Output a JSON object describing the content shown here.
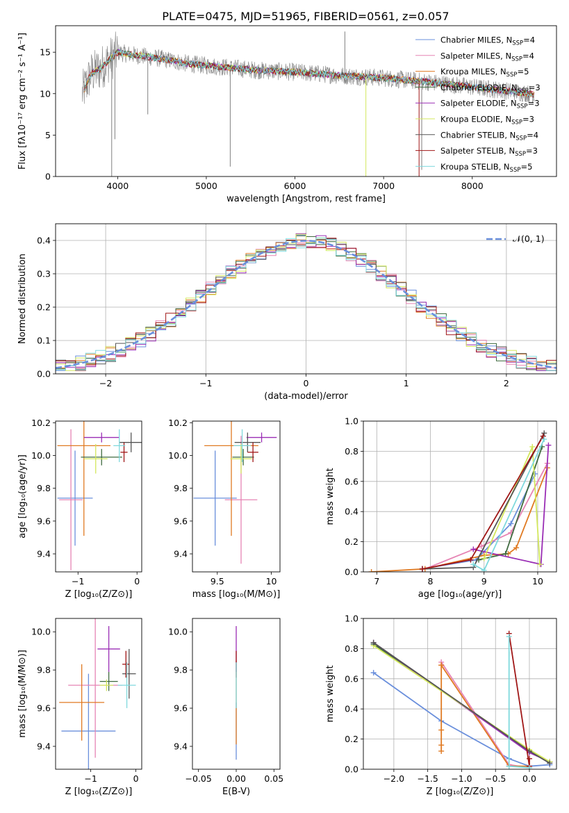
{
  "figure_title": "PLATE=0475, MJD=51965, FIBERID=0561, z=0.057",
  "colors": {
    "chabrier_miles": "#6a8fdc",
    "salpeter_miles": "#e684b4",
    "kroupa_miles": "#e07a22",
    "chabrier_elodie": "#3f6a3f",
    "salpeter_elodie": "#9a2db5",
    "kroupa_elodie": "#d3e85c",
    "chabrier_stelib": "#555555",
    "salpeter_stelib": "#a01616",
    "kroupa_stelib": "#7fd9dd",
    "spectrum": "#808080"
  },
  "chart_data": [
    {
      "id": "spectrum",
      "type": "line",
      "xlabel": "wavelength [Angstrom, rest frame]",
      "ylabel": "Flux [fλ10⁻¹⁷ erg cm⁻² s⁻¹ A⁻¹]",
      "xlim": [
        3300,
        8950
      ],
      "ylim": [
        0,
        18.2
      ],
      "xticks": [
        4000,
        5000,
        6000,
        7000,
        8000
      ],
      "yticks": [
        0,
        5,
        10,
        15
      ],
      "continuum": {
        "x": [
          3600,
          3700,
          3800,
          3900,
          4000,
          4100,
          4300,
          4500,
          4800,
          5000,
          5300,
          5600,
          6000,
          6500,
          7000,
          7500,
          8000,
          8500,
          8700
        ],
        "y": [
          10.0,
          12.4,
          13.0,
          14.0,
          15.0,
          14.8,
          14.5,
          14.2,
          13.6,
          13.4,
          13.1,
          12.8,
          12.6,
          12.2,
          11.9,
          11.4,
          10.8,
          10.2,
          9.9
        ]
      },
      "legend": [
        {
          "label": "Chabrier MILES, N_SSP=4",
          "main": "Chabrier MILES, N",
          "sub": "SSP",
          "tail": "=4",
          "color": "#6a8fdc"
        },
        {
          "label": "Salpeter MILES, N_SSP=4",
          "main": "Salpeter MILES, N",
          "sub": "SSP",
          "tail": "=4",
          "color": "#e684b4"
        },
        {
          "label": "Kroupa MILES, N_SSP=5",
          "main": "Kroupa MILES, N",
          "sub": "SSP",
          "tail": "=5",
          "color": "#e07a22"
        },
        {
          "label": "Chabrier ELODIE, N_SSP=3",
          "main": "Chabrier ELODIE, N",
          "sub": "SSP",
          "tail": "=3",
          "color": "#3f6a3f"
        },
        {
          "label": "Salpeter ELODIE, N_SSP=3",
          "main": "Salpeter ELODIE, N",
          "sub": "SSP",
          "tail": "=3",
          "color": "#9a2db5"
        },
        {
          "label": "Kroupa ELODIE, N_SSP=3",
          "main": "Kroupa ELODIE, N",
          "sub": "SSP",
          "tail": "=3",
          "color": "#d3e85c"
        },
        {
          "label": "Chabrier STELIB, N_SSP=4",
          "main": "Chabrier STELIB, N",
          "sub": "SSP",
          "tail": "=4",
          "color": "#555555"
        },
        {
          "label": "Salpeter STELIB, N_SSP=3",
          "main": "Salpeter STELIB, N",
          "sub": "SSP",
          "tail": "=3",
          "color": "#a01616"
        },
        {
          "label": "Kroupa STELIB, N_SSP=5",
          "main": "Kroupa STELIB, N",
          "sub": "SSP",
          "tail": "=5",
          "color": "#7fd9dd"
        }
      ],
      "legend_position": "top-right"
    },
    {
      "id": "residual_hist",
      "type": "line",
      "xlabel": "(data-model)/error",
      "ylabel": "Normed distribution",
      "xlim": [
        -2.5,
        2.5
      ],
      "ylim": [
        0,
        0.45
      ],
      "xticks": [
        -2,
        -1,
        0,
        1,
        2
      ],
      "yticks": [
        0.0,
        0.1,
        0.2,
        0.3,
        0.4
      ],
      "grid": true,
      "bin_width": 0.1,
      "gaussian": {
        "mean": 0,
        "sigma": 1,
        "label": "𝒩(0, 1)"
      },
      "legend_position": "top-right"
    },
    {
      "id": "z_age",
      "type": "scatter",
      "xlabel": "Z [log₁₀(Z/Z⊙)]",
      "ylabel": "age  [log₁₀(age/yr)]",
      "xlim": [
        -1.38,
        0.08
      ],
      "ylim": [
        9.29,
        10.21
      ],
      "xticks": [
        -1,
        0
      ],
      "yticks": [
        9.4,
        9.6,
        9.8,
        10.0,
        10.2
      ],
      "points": [
        {
          "model": "chabrier_miles",
          "x": -1.05,
          "xerr": 0.3,
          "y": 9.74,
          "yerr": 0.29
        },
        {
          "model": "salpeter_miles",
          "x": -1.12,
          "xerr": 0.2,
          "y": 9.73,
          "yerr": 0.43
        },
        {
          "model": "kroupa_miles",
          "x": -0.9,
          "xerr": 0.45,
          "y": 10.06,
          "yerr": 0.55
        },
        {
          "model": "chabrier_elodie",
          "x": -0.6,
          "xerr": 0.35,
          "y": 9.99,
          "yerr": 0.05
        },
        {
          "model": "salpeter_elodie",
          "x": -0.6,
          "xerr": 0.3,
          "y": 10.11,
          "yerr": 0.03
        },
        {
          "model": "kroupa_elodie",
          "x": -0.7,
          "xerr": 0.2,
          "y": 9.98,
          "yerr": 0.09
        },
        {
          "model": "chabrier_stelib",
          "x": -0.1,
          "xerr": 0.2,
          "y": 10.08,
          "yerr": 0.06
        },
        {
          "model": "salpeter_stelib",
          "x": -0.22,
          "xerr": 0.06,
          "y": 10.02,
          "yerr": 0.06
        },
        {
          "model": "kroupa_stelib",
          "x": -0.3,
          "xerr": 0.1,
          "y": 10.06,
          "yerr": 0.1
        }
      ]
    },
    {
      "id": "mass_age",
      "type": "scatter",
      "xlabel": "mass [log₁₀(M/M⊙)]",
      "ylabel": "",
      "xlim": [
        9.27,
        10.08
      ],
      "ylim": [
        9.29,
        10.21
      ],
      "xticks": [
        9.5,
        10.0
      ],
      "yticks": [
        9.4,
        9.6,
        9.8,
        10.0,
        10.2
      ],
      "points": [
        {
          "model": "chabrier_miles",
          "x": 9.48,
          "xerr": 0.2,
          "y": 9.74,
          "yerr": 0.29
        },
        {
          "model": "salpeter_miles",
          "x": 9.72,
          "xerr": 0.15,
          "y": 9.73,
          "yerr": 0.39
        },
        {
          "model": "kroupa_miles",
          "x": 9.63,
          "xerr": 0.25,
          "y": 10.06,
          "yerr": 0.55
        },
        {
          "model": "chabrier_elodie",
          "x": 9.74,
          "xerr": 0.1,
          "y": 9.99,
          "yerr": 0.05
        },
        {
          "model": "salpeter_elodie",
          "x": 9.91,
          "xerr": 0.14,
          "y": 10.11,
          "yerr": 0.03
        },
        {
          "model": "kroupa_elodie",
          "x": 9.72,
          "xerr": 0.1,
          "y": 9.98,
          "yerr": 0.09
        },
        {
          "model": "chabrier_stelib",
          "x": 9.78,
          "xerr": 0.12,
          "y": 10.08,
          "yerr": 0.06
        },
        {
          "model": "salpeter_stelib",
          "x": 9.83,
          "xerr": 0.05,
          "y": 10.02,
          "yerr": 0.06
        },
        {
          "model": "kroupa_stelib",
          "x": 9.73,
          "xerr": 0.08,
          "y": 10.06,
          "yerr": 0.1
        }
      ]
    },
    {
      "id": "age_weight",
      "type": "line",
      "xlabel": "age  [log₁₀(age/yr)]",
      "ylabel": "mass weight",
      "xlim": [
        6.75,
        10.35
      ],
      "ylim": [
        0,
        1.0
      ],
      "xticks": [
        7,
        8,
        9,
        10
      ],
      "yticks": [
        0.0,
        0.2,
        0.4,
        0.6,
        0.8,
        1.0
      ],
      "grid": true,
      "series": [
        {
          "model": "chabrier_miles",
          "x": [
            7.85,
            8.85,
            9.5,
            9.95
          ],
          "y": [
            0.02,
            0.08,
            0.32,
            0.65
          ]
        },
        {
          "model": "salpeter_miles",
          "x": [
            7.9,
            8.95,
            9.5,
            10.18
          ],
          "y": [
            0.02,
            0.17,
            0.26,
            0.72
          ]
        },
        {
          "model": "kroupa_miles",
          "x": [
            6.9,
            7.9,
            9.0,
            9.45,
            9.6,
            10.18
          ],
          "y": [
            0.0,
            0.02,
            0.11,
            0.12,
            0.16,
            0.69
          ]
        },
        {
          "model": "chabrier_elodie",
          "x": [
            8.9,
            9.4,
            10.08
          ],
          "y": [
            0.08,
            0.12,
            0.83
          ]
        },
        {
          "model": "salpeter_elodie",
          "x": [
            8.8,
            10.06,
            10.2
          ],
          "y": [
            0.15,
            0.05,
            0.84
          ]
        },
        {
          "model": "kroupa_elodie",
          "x": [
            9.0,
            9.9,
            10.04
          ],
          "y": [
            0.09,
            0.83,
            0.05
          ]
        },
        {
          "model": "chabrier_stelib",
          "x": [
            7.85,
            8.8,
            10.12
          ],
          "y": [
            0.02,
            0.03,
            0.92
          ]
        },
        {
          "model": "salpeter_stelib",
          "x": [
            7.85,
            8.75,
            10.1
          ],
          "y": [
            0.02,
            0.08,
            0.9
          ]
        },
        {
          "model": "kroupa_stelib",
          "x": [
            8.8,
            9.0,
            10.12
          ],
          "y": [
            0.05,
            0.01,
            0.88
          ]
        }
      ]
    },
    {
      "id": "z_mass",
      "type": "scatter",
      "xlabel": "Z [log₁₀(Z/Z⊙)]",
      "ylabel": "mass [log₁₀(M/M⊙)]",
      "xlim": [
        -1.78,
        0.13
      ],
      "ylim": [
        9.28,
        10.07
      ],
      "xticks": [
        -1,
        0
      ],
      "yticks": [
        9.4,
        9.6,
        9.8,
        10.0
      ],
      "points": [
        {
          "model": "chabrier_miles",
          "x": -1.05,
          "xerr": 0.6,
          "y": 9.48,
          "yerr": 0.3
        },
        {
          "model": "salpeter_miles",
          "x": -0.9,
          "xerr": 0.6,
          "y": 9.72,
          "yerr": 0.38
        },
        {
          "model": "kroupa_miles",
          "x": -1.2,
          "xerr": 0.5,
          "y": 9.63,
          "yerr": 0.2
        },
        {
          "model": "chabrier_elodie",
          "x": -0.6,
          "xerr": 0.2,
          "y": 9.74,
          "yerr": 0.05
        },
        {
          "model": "salpeter_elodie",
          "x": -0.6,
          "xerr": 0.25,
          "y": 9.91,
          "yerr": 0.12
        },
        {
          "model": "kroupa_elodie",
          "x": -0.65,
          "xerr": 0.15,
          "y": 9.72,
          "yerr": 0.03
        },
        {
          "model": "chabrier_stelib",
          "x": -0.15,
          "xerr": 0.15,
          "y": 9.78,
          "yerr": 0.13
        },
        {
          "model": "salpeter_stelib",
          "x": -0.22,
          "xerr": 0.08,
          "y": 9.83,
          "yerr": 0.07
        },
        {
          "model": "kroupa_stelib",
          "x": -0.2,
          "xerr": 0.2,
          "y": 9.72,
          "yerr": 0.12
        }
      ]
    },
    {
      "id": "ebv_mass",
      "type": "scatter",
      "xlabel": "E(B-V)",
      "ylabel": "",
      "xlim": [
        -0.058,
        0.058
      ],
      "ylim": [
        9.28,
        10.07
      ],
      "xticks": [
        -0.05,
        0.0,
        0.05
      ],
      "xticklabels": [
        "−0.05",
        "0.00",
        "0.05"
      ],
      "yticks": [
        9.4,
        9.6,
        9.8,
        10.0
      ],
      "points": [
        {
          "model": "chabrier_miles",
          "x": 0,
          "xerr": 0,
          "y": 9.48,
          "yerr": 0.15
        },
        {
          "model": "kroupa_miles",
          "x": 0,
          "xerr": 0,
          "y": 9.63,
          "yerr": 0.22
        },
        {
          "model": "salpeter_elodie",
          "x": 0,
          "xerr": 0,
          "y": 9.91,
          "yerr": 0.12
        },
        {
          "model": "salpeter_stelib",
          "x": 0,
          "xerr": 0,
          "y": 9.83,
          "yerr": 0.07
        },
        {
          "model": "kroupa_stelib",
          "x": 0,
          "xerr": 0,
          "y": 9.72,
          "yerr": 0.12
        }
      ]
    },
    {
      "id": "z_weight",
      "type": "line",
      "xlabel": "Z [log₁₀(Z/Z⊙)]",
      "ylabel": "mass weight",
      "xlim": [
        -2.45,
        0.4
      ],
      "ylim": [
        0,
        1.0
      ],
      "xticks": [
        -2.0,
        -1.5,
        -1.0,
        -0.5,
        0.0
      ],
      "xticklabels": [
        "−2.0",
        "−1.5",
        "−1.0",
        "−0.5",
        "0.0"
      ],
      "yticks": [
        0.0,
        0.2,
        0.4,
        0.6,
        0.8,
        1.0
      ],
      "grid": true,
      "series": [
        {
          "model": "chabrier_miles",
          "x": [
            -2.3,
            -1.3,
            -0.3,
            0.0,
            0.3
          ],
          "y": [
            0.64,
            0.32,
            0.07,
            0.02,
            0.03
          ]
        },
        {
          "model": "salpeter_miles",
          "x": [
            -1.3,
            -0.3,
            0.0
          ],
          "y": [
            0.71,
            0.03,
            0.01
          ]
        },
        {
          "model": "kroupa_miles",
          "x": [
            -1.3,
            -1.3,
            -1.3,
            -1.3,
            -1.3,
            -0.3,
            0.0
          ],
          "y": [
            0.69,
            0.26,
            0.16,
            0.12,
            0.69,
            0.02,
            0.02
          ]
        },
        {
          "model": "chabrier_elodie",
          "x": [
            -2.3,
            0.0,
            0.3
          ],
          "y": [
            0.83,
            0.12,
            0.05
          ]
        },
        {
          "model": "salpeter_elodie",
          "x": [
            -2.3,
            0.0,
            0.3
          ],
          "y": [
            0.84,
            0.11,
            0.05
          ]
        },
        {
          "model": "kroupa_elodie",
          "x": [
            -2.3,
            0.0,
            0.3
          ],
          "y": [
            0.82,
            0.13,
            0.05
          ]
        },
        {
          "model": "chabrier_stelib",
          "x": [
            -2.3,
            0.0,
            0.3
          ],
          "y": [
            0.84,
            0.12,
            0.04
          ]
        },
        {
          "model": "salpeter_stelib",
          "x": [
            -0.3,
            0.0,
            0.0
          ],
          "y": [
            0.9,
            0.02,
            0.07
          ]
        },
        {
          "model": "kroupa_stelib",
          "x": [
            -0.3,
            -0.3,
            0.0
          ],
          "y": [
            0.88,
            0.02,
            0.01
          ]
        }
      ]
    }
  ]
}
